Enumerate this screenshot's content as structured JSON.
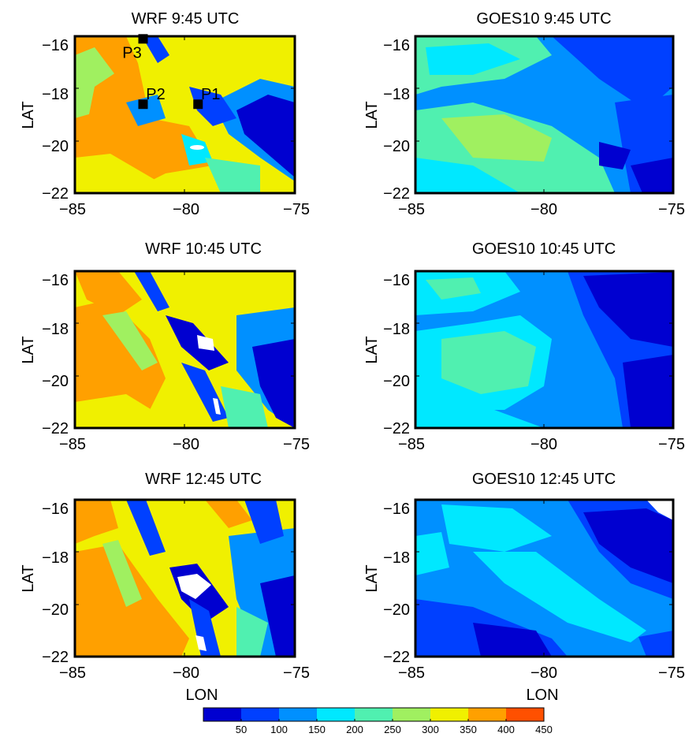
{
  "chart_data": [
    {
      "type": "heatmap",
      "title": "WRF 9:45 UTC",
      "xlabel": "",
      "ylabel": "LAT",
      "xlim": [
        -85,
        -75
      ],
      "ylim": [
        -22,
        -16
      ],
      "x_ticks": [
        "−85",
        "−80",
        "−75"
      ],
      "y_ticks": [
        "−16",
        "−18",
        "−20",
        "−22"
      ],
      "points": [
        {
          "label": "P1",
          "lon": -79.4,
          "lat": -18.6
        },
        {
          "label": "P2",
          "lon": -81.9,
          "lat": -18.6
        },
        {
          "label": "P3",
          "lon": -81.9,
          "lat": -16.1
        }
      ]
    },
    {
      "type": "heatmap",
      "title": "GOES10 9:45 UTC",
      "xlabel": "",
      "ylabel": "LAT",
      "xlim": [
        -85,
        -75
      ],
      "ylim": [
        -22,
        -16
      ],
      "x_ticks": [
        "−85",
        "−80",
        "−75"
      ],
      "y_ticks": [
        "−16",
        "−18",
        "−20",
        "−22"
      ]
    },
    {
      "type": "heatmap",
      "title": "WRF 10:45 UTC",
      "xlabel": "",
      "ylabel": "LAT",
      "xlim": [
        -85,
        -75
      ],
      "ylim": [
        -22,
        -16
      ],
      "x_ticks": [
        "−85",
        "−80",
        "−75"
      ],
      "y_ticks": [
        "−16",
        "−18",
        "−20",
        "−22"
      ]
    },
    {
      "type": "heatmap",
      "title": "GOES10 10:45 UTC",
      "xlabel": "",
      "ylabel": "LAT",
      "xlim": [
        -85,
        -75
      ],
      "ylim": [
        -22,
        -16
      ],
      "x_ticks": [
        "−85",
        "−80",
        "−75"
      ],
      "y_ticks": [
        "−16",
        "−18",
        "−20",
        "−22"
      ]
    },
    {
      "type": "heatmap",
      "title": "WRF 12:45 UTC",
      "xlabel": "LON",
      "ylabel": "LAT",
      "xlim": [
        -85,
        -75
      ],
      "ylim": [
        -22,
        -16
      ],
      "x_ticks": [
        "−85",
        "−80",
        "−75"
      ],
      "y_ticks": [
        "−16",
        "−18",
        "−20",
        "−22"
      ]
    },
    {
      "type": "heatmap",
      "title": "GOES10 12:45 UTC",
      "xlabel": "LON",
      "ylabel": "LAT",
      "xlim": [
        -85,
        -75
      ],
      "ylim": [
        -22,
        -16
      ],
      "x_ticks": [
        "−85",
        "−80",
        "−75"
      ],
      "y_ticks": [
        "−16",
        "−18",
        "−20",
        "−22"
      ]
    }
  ],
  "colorbar": {
    "ticks": [
      "50",
      "100",
      "150",
      "200",
      "250",
      "300",
      "350",
      "400",
      "450"
    ],
    "colors": [
      "#0000d0",
      "#0040ff",
      "#0090ff",
      "#00e8ff",
      "#50f0b0",
      "#a0f060",
      "#f0f000",
      "#ffa000",
      "#ff5000"
    ]
  }
}
